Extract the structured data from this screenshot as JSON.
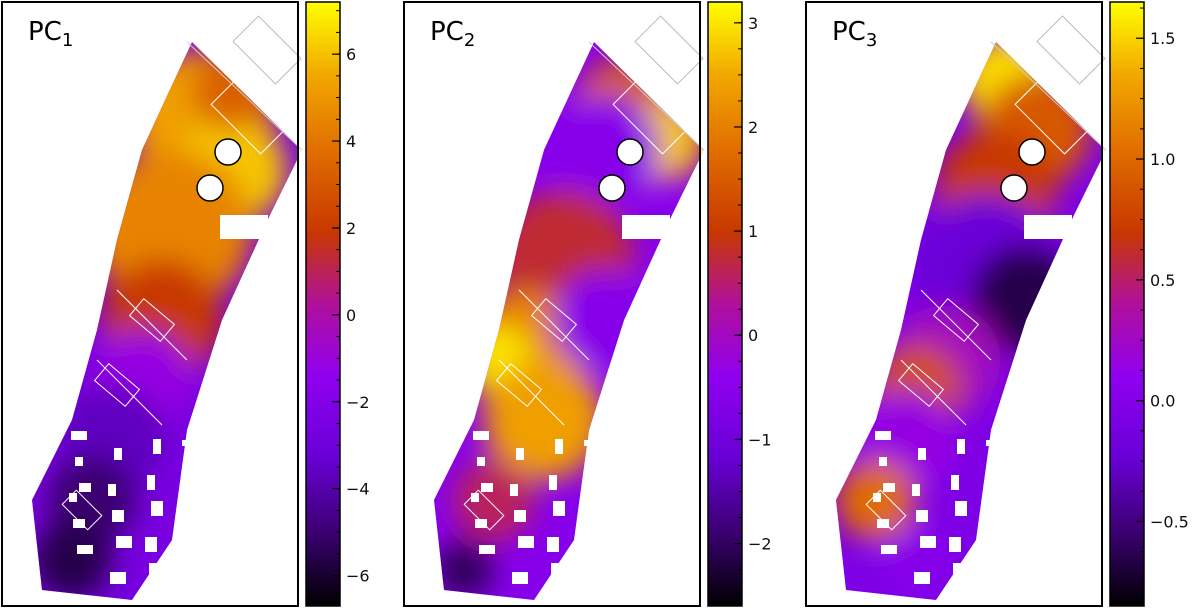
{
  "chart_data": [
    {
      "type": "heatmap",
      "title": "PC",
      "title_subscript": "1",
      "colormap": "gnuplot",
      "colorbar_range": [
        -6.7,
        7.2
      ],
      "colorbar_ticks": [
        6,
        4,
        2,
        0,
        -2,
        -4,
        -6
      ],
      "colorbar_tick_labels": [
        "6",
        "4",
        "2",
        "0",
        "−2",
        "−4",
        "−6"
      ],
      "map_features": [
        "tilted pixel map",
        "two white circular masks",
        "white rectangular slit outlines"
      ]
    },
    {
      "type": "heatmap",
      "title": "PC",
      "title_subscript": "2",
      "colormap": "gnuplot",
      "colorbar_range": [
        -2.6,
        3.2
      ],
      "colorbar_ticks": [
        3,
        2,
        1,
        0,
        -1,
        -2
      ],
      "colorbar_tick_labels": [
        "3",
        "2",
        "1",
        "0",
        "−1",
        "−2"
      ],
      "map_features": [
        "tilted pixel map",
        "two white circular masks",
        "white rectangular slit outlines"
      ]
    },
    {
      "type": "heatmap",
      "title": "PC",
      "title_subscript": "3",
      "colormap": "gnuplot",
      "colorbar_range": [
        -0.85,
        1.65
      ],
      "colorbar_ticks": [
        1.5,
        1.0,
        0.5,
        0.0,
        -0.5
      ],
      "colorbar_tick_labels": [
        "1.5",
        "1.0",
        "0.5",
        "0.0",
        "−0.5"
      ],
      "map_features": [
        "tilted pixel map",
        "two white circular masks",
        "white rectangular slit outlines"
      ]
    }
  ]
}
